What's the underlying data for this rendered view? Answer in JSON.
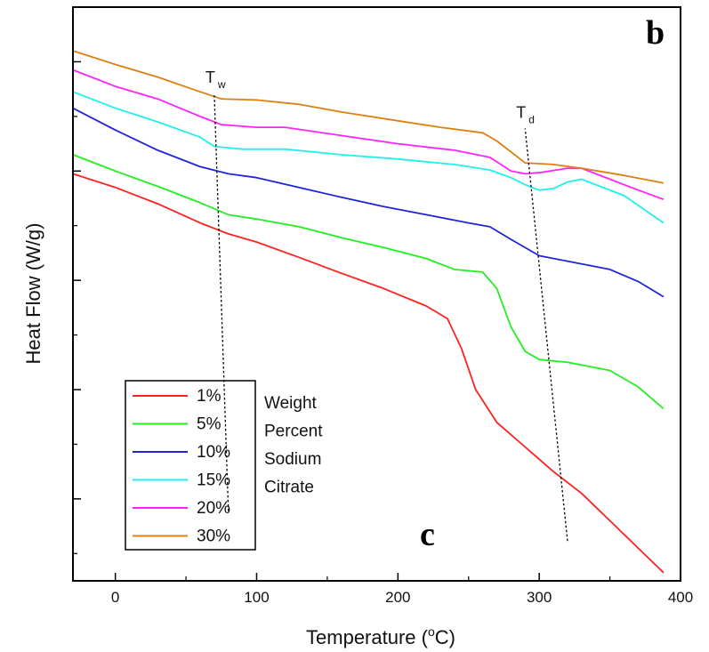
{
  "chart_data": {
    "type": "line",
    "xlabel_main": "Temperature (",
    "xlabel_sup": "o",
    "xlabel_end": "C)",
    "ylabel": "Heat Flow (W/g)",
    "xlim": [
      -30,
      400
    ],
    "x_ticks": [
      "0",
      "100",
      "200",
      "300",
      "400"
    ],
    "y_ticks_labeled": false,
    "panel_letters": {
      "top_right": "b",
      "bottom": "c"
    },
    "legend_title_lines": [
      "Weight",
      "Percent",
      "Sodium",
      "Citrate"
    ],
    "markers": [
      {
        "label": "T",
        "sub": "w",
        "line": [
          [
            80,
            0.78
          ],
          [
            70,
            8.42
          ]
        ]
      },
      {
        "label": "T",
        "sub": "d",
        "line": [
          [
            320,
            0.23
          ],
          [
            290,
            7.78
          ]
        ]
      }
    ],
    "series": [
      {
        "name": "1%",
        "color": "#ff2020",
        "points": [
          [
            -30,
            6.95
          ],
          [
            0,
            6.7
          ],
          [
            30,
            6.4
          ],
          [
            60,
            6.05
          ],
          [
            80,
            5.85
          ],
          [
            100,
            5.7
          ],
          [
            130,
            5.42
          ],
          [
            160,
            5.13
          ],
          [
            190,
            4.85
          ],
          [
            220,
            4.53
          ],
          [
            235,
            4.3
          ],
          [
            245,
            3.75
          ],
          [
            255,
            3.0
          ],
          [
            270,
            2.4
          ],
          [
            290,
            1.95
          ],
          [
            310,
            1.5
          ],
          [
            330,
            1.1
          ],
          [
            350,
            0.6
          ],
          [
            370,
            0.1
          ],
          [
            388,
            -0.35
          ]
        ]
      },
      {
        "name": "5%",
        "color": "#22ee22",
        "points": [
          [
            -30,
            7.3
          ],
          [
            0,
            7.0
          ],
          [
            30,
            6.72
          ],
          [
            60,
            6.42
          ],
          [
            80,
            6.2
          ],
          [
            100,
            6.12
          ],
          [
            130,
            5.98
          ],
          [
            160,
            5.78
          ],
          [
            190,
            5.6
          ],
          [
            220,
            5.4
          ],
          [
            240,
            5.2
          ],
          [
            260,
            5.15
          ],
          [
            270,
            4.85
          ],
          [
            280,
            4.15
          ],
          [
            290,
            3.7
          ],
          [
            300,
            3.55
          ],
          [
            320,
            3.5
          ],
          [
            350,
            3.35
          ],
          [
            370,
            3.05
          ],
          [
            388,
            2.65
          ]
        ]
      },
      {
        "name": "10%",
        "color": "#1f24dd",
        "points": [
          [
            -30,
            8.15
          ],
          [
            0,
            7.75
          ],
          [
            30,
            7.38
          ],
          [
            60,
            7.08
          ],
          [
            80,
            6.95
          ],
          [
            100,
            6.88
          ],
          [
            130,
            6.7
          ],
          [
            160,
            6.52
          ],
          [
            190,
            6.35
          ],
          [
            220,
            6.2
          ],
          [
            250,
            6.05
          ],
          [
            265,
            5.98
          ],
          [
            280,
            5.75
          ],
          [
            300,
            5.45
          ],
          [
            320,
            5.35
          ],
          [
            350,
            5.2
          ],
          [
            370,
            4.98
          ],
          [
            388,
            4.7
          ]
        ]
      },
      {
        "name": "15%",
        "color": "#22eeee",
        "points": [
          [
            -30,
            8.45
          ],
          [
            0,
            8.15
          ],
          [
            30,
            7.9
          ],
          [
            60,
            7.62
          ],
          [
            70,
            7.45
          ],
          [
            90,
            7.4
          ],
          [
            120,
            7.4
          ],
          [
            160,
            7.3
          ],
          [
            200,
            7.22
          ],
          [
            240,
            7.12
          ],
          [
            265,
            7.02
          ],
          [
            280,
            6.88
          ],
          [
            290,
            6.75
          ],
          [
            300,
            6.65
          ],
          [
            310,
            6.68
          ],
          [
            320,
            6.8
          ],
          [
            330,
            6.85
          ],
          [
            340,
            6.75
          ],
          [
            360,
            6.55
          ],
          [
            388,
            6.05
          ]
        ]
      },
      {
        "name": "20%",
        "color": "#ff22ff",
        "points": [
          [
            -30,
            8.85
          ],
          [
            0,
            8.55
          ],
          [
            30,
            8.32
          ],
          [
            60,
            8.0
          ],
          [
            75,
            7.85
          ],
          [
            100,
            7.8
          ],
          [
            120,
            7.8
          ],
          [
            160,
            7.65
          ],
          [
            200,
            7.5
          ],
          [
            240,
            7.38
          ],
          [
            265,
            7.25
          ],
          [
            280,
            7.0
          ],
          [
            290,
            6.95
          ],
          [
            300,
            6.97
          ],
          [
            320,
            7.05
          ],
          [
            330,
            7.05
          ],
          [
            345,
            6.9
          ],
          [
            365,
            6.7
          ],
          [
            388,
            6.48
          ]
        ]
      },
      {
        "name": "30%",
        "color": "#dd8010",
        "points": [
          [
            -30,
            9.2
          ],
          [
            0,
            8.95
          ],
          [
            30,
            8.72
          ],
          [
            60,
            8.45
          ],
          [
            75,
            8.32
          ],
          [
            100,
            8.3
          ],
          [
            130,
            8.22
          ],
          [
            160,
            8.08
          ],
          [
            200,
            7.92
          ],
          [
            230,
            7.8
          ],
          [
            260,
            7.7
          ],
          [
            270,
            7.55
          ],
          [
            290,
            7.15
          ],
          [
            310,
            7.12
          ],
          [
            330,
            7.05
          ],
          [
            360,
            6.92
          ],
          [
            388,
            6.78
          ]
        ]
      }
    ]
  }
}
